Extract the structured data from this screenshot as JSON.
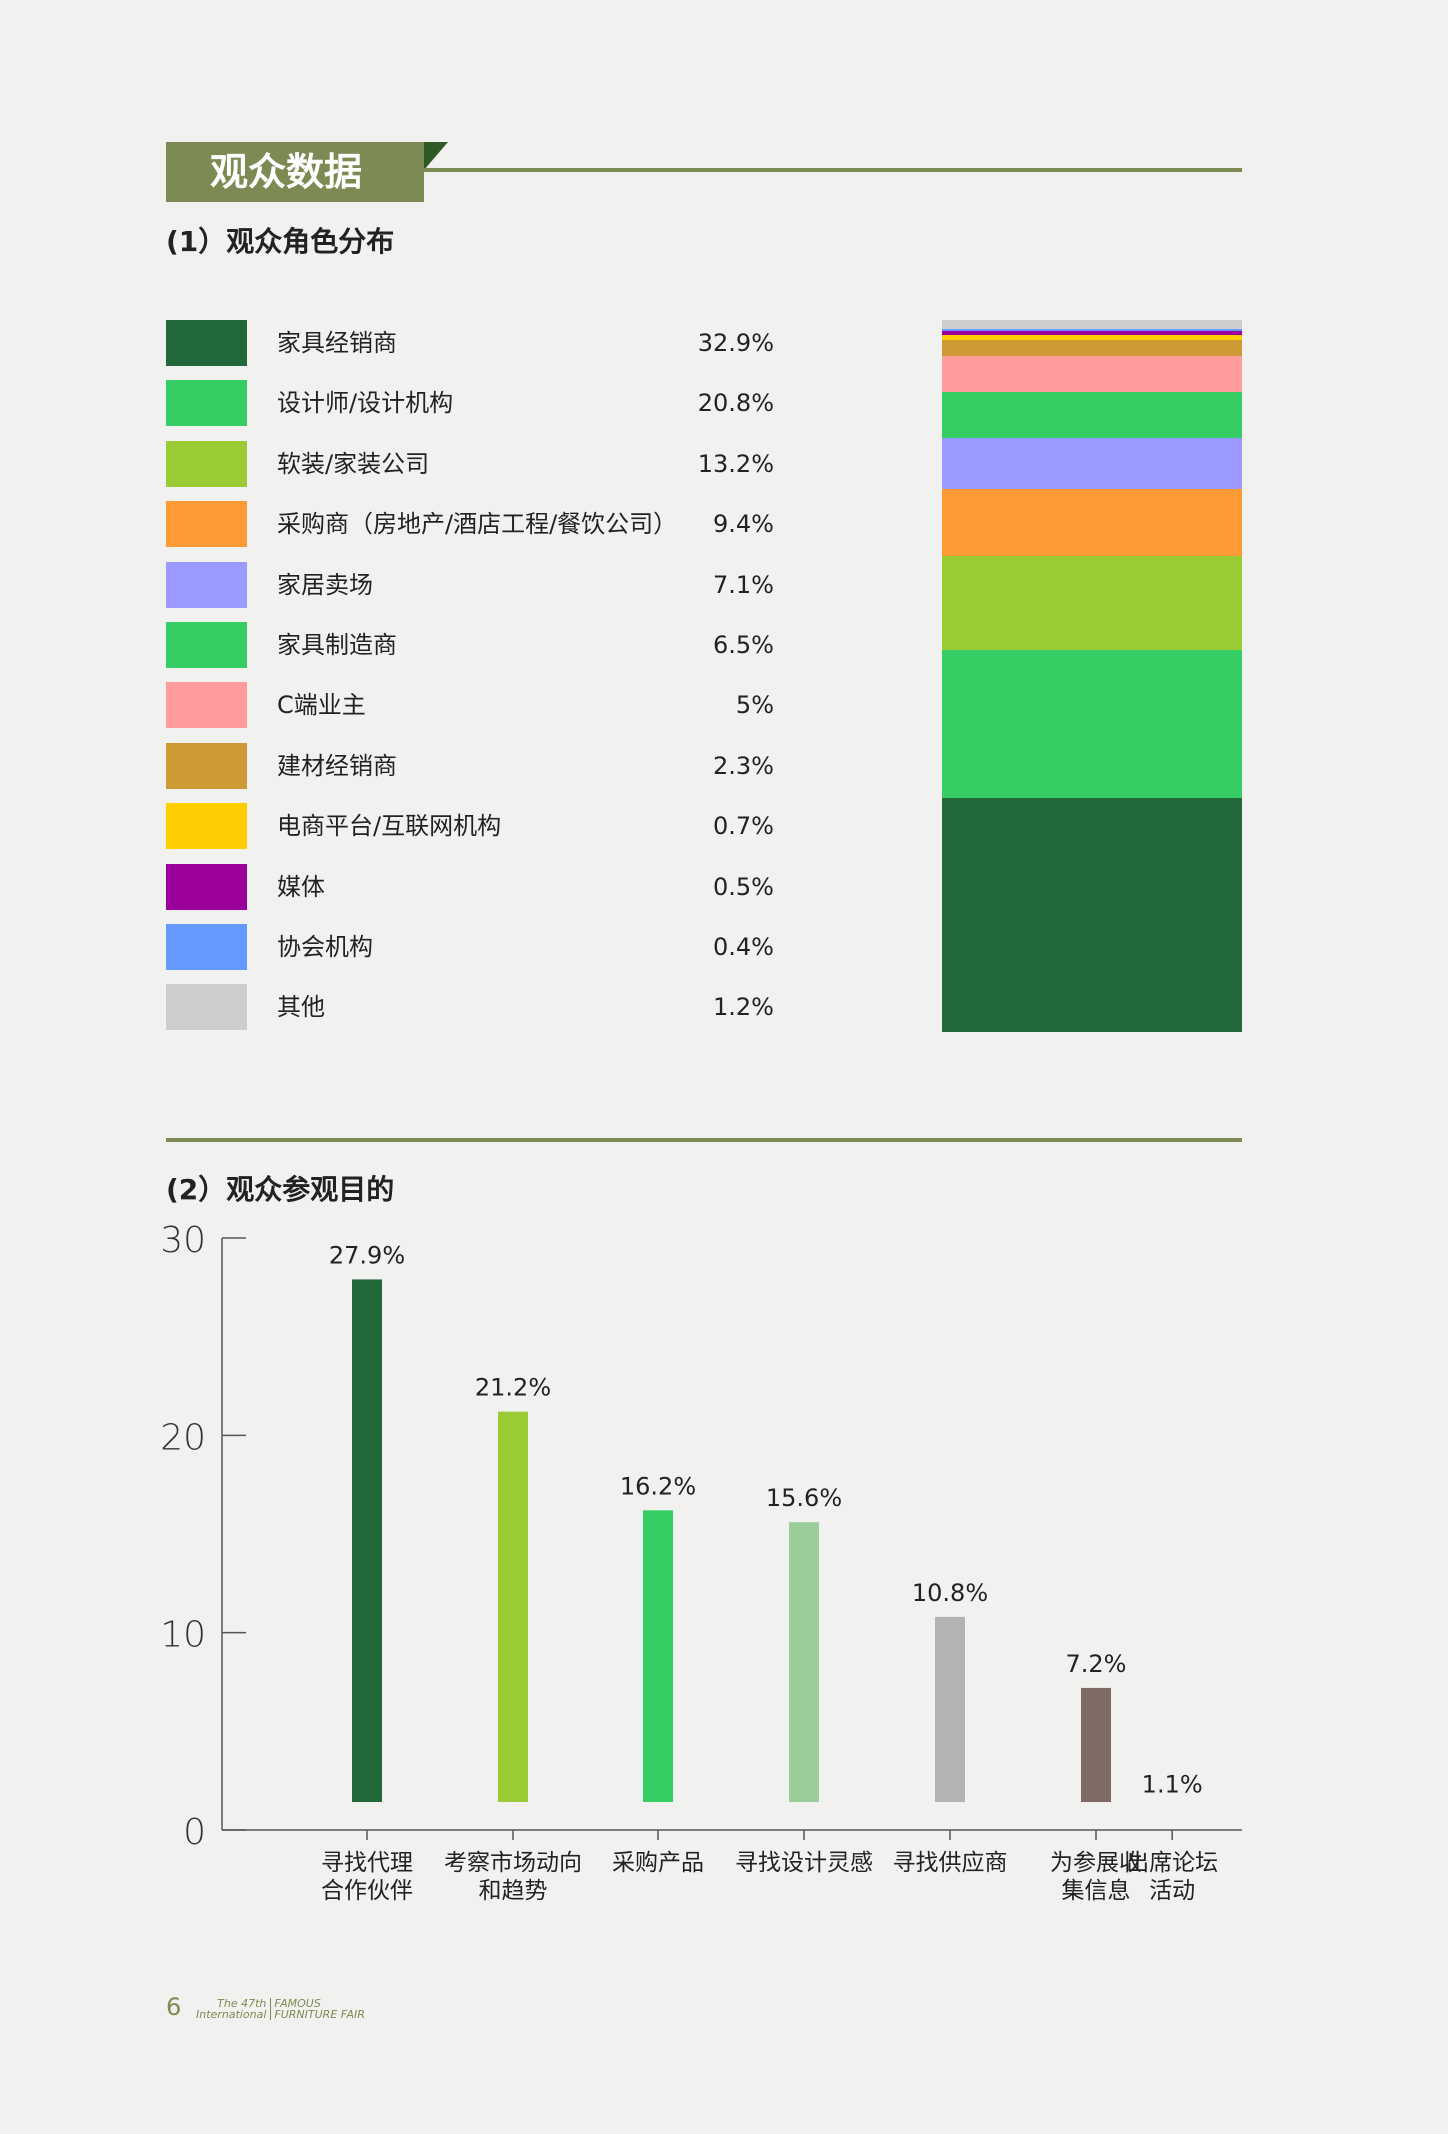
{
  "section_title": "观众数据",
  "part1_title": "(1）观众角色分布",
  "part2_title": "(2）观众参观目的",
  "legend": [
    {
      "label": "家具经销商",
      "pct": "32.9%",
      "value": 32.9,
      "color": "#22683b"
    },
    {
      "label": "设计师/设计机构",
      "pct": "20.8%",
      "value": 20.8,
      "color": "#35cd64"
    },
    {
      "label": "软装/家装公司",
      "pct": "13.2%",
      "value": 13.2,
      "color": "#9bcb34"
    },
    {
      "label": "采购商（房地产/酒店工程/餐饮公司）",
      "pct": "9.4%",
      "value": 9.4,
      "color": "#ff9a35"
    },
    {
      "label": "家居卖场",
      "pct": "7.1%",
      "value": 7.1,
      "color": "#9b9bff"
    },
    {
      "label": "家具制造商",
      "pct": "6.5%",
      "value": 6.5,
      "color": "#35cd64"
    },
    {
      "label": "C端业主",
      "pct": "5%",
      "value": 5,
      "color": "#ff9b9b"
    },
    {
      "label": "建材经销商",
      "pct": "2.3%",
      "value": 2.3,
      "color": "#cd9a35"
    },
    {
      "label": "电商平台/互联网机构",
      "pct": "0.7%",
      "value": 0.7,
      "color": "#ffcd00"
    },
    {
      "label": "媒体",
      "pct": "0.5%",
      "value": 0.5,
      "color": "#9b009b"
    },
    {
      "label": "协会机构",
      "pct": "0.4%",
      "value": 0.4,
      "color": "#6699ff"
    },
    {
      "label": "其他",
      "pct": "1.2%",
      "value": 1.2,
      "color": "#cdcdcd"
    }
  ],
  "chart_data": {
    "type": "bar",
    "categories": [
      "寻找代理\n合作伙伴",
      "考察市场动向\n和趋势",
      "采购产品",
      "寻找设计灵感",
      "寻找供应商",
      "为参展收\n集信息",
      "出席论坛\n活动"
    ],
    "values": [
      27.9,
      21.2,
      16.2,
      15.6,
      10.8,
      7.2,
      1.1
    ],
    "labels": [
      "27.9%",
      "21.2%",
      "16.2%",
      "15.6%",
      "10.8%",
      "7.2%",
      "1.1%"
    ],
    "colors": [
      "#22683b",
      "#9bcb34",
      "#35cd64",
      "#9bcd9b",
      "#b3b3b3",
      "#7f6a64",
      "#cdcdcd"
    ],
    "yticks": [
      "0",
      "10",
      "20",
      "30"
    ],
    "ylim": [
      0,
      30
    ]
  },
  "footer": {
    "page": "6",
    "logo_line1": "The 47th",
    "logo_line2": "International",
    "logo_line3": "FAMOUS",
    "logo_line4": "FURNITURE FAIR"
  }
}
